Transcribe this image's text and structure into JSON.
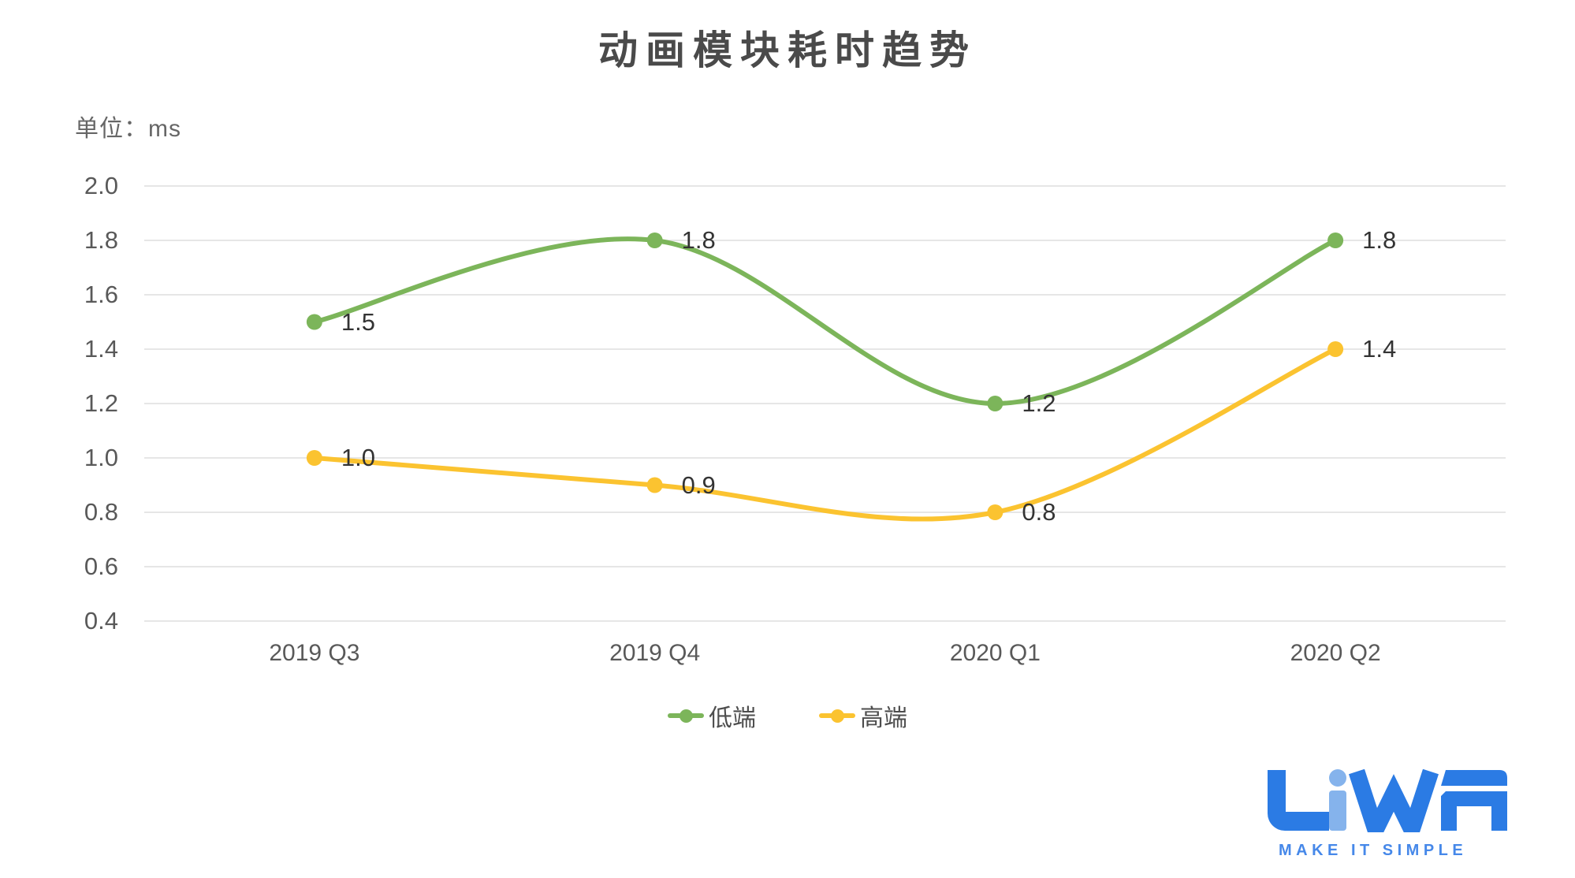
{
  "title": "动画模块耗时趋势",
  "unit_label": "单位：ms",
  "chart_data": {
    "type": "line",
    "smooth": true,
    "title": "动画模块耗时趋势",
    "ylabel": "ms",
    "xlabel": "",
    "categories": [
      "2019 Q3",
      "2019 Q4",
      "2020 Q1",
      "2020 Q2"
    ],
    "series": [
      {
        "name": "低端",
        "color": "#7CB55A",
        "values": [
          1.5,
          1.8,
          1.2,
          1.8
        ]
      },
      {
        "name": "高端",
        "color": "#FBC330",
        "values": [
          1.0,
          0.9,
          0.8,
          1.4
        ]
      }
    ],
    "ylim": [
      0.4,
      2.0
    ],
    "ytick_step": 0.2,
    "yticks": [
      "2.0",
      "1.8",
      "1.6",
      "1.4",
      "1.2",
      "1.0",
      "0.8",
      "0.6",
      "0.4"
    ],
    "grid": "horizontal",
    "gridline_color": "#E6E6E6",
    "legend_position": "bottom",
    "value_label_decimals": 1
  },
  "logo": {
    "wordmark": "LiWA",
    "tagline": "MAKE IT SIMPLE",
    "primary_color": "#2B7BE4",
    "accent_color": "#85B3EC"
  }
}
